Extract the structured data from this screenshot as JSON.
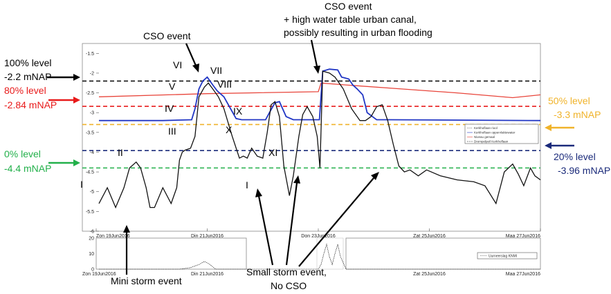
{
  "chart_data": {
    "type": "line",
    "ylim": [
      -6,
      -1.25
    ],
    "yaxis_inverted": true,
    "yticks": [
      "-1.5",
      "-2",
      "-2.5",
      "-3",
      "-3.5",
      "-4",
      "-4.5",
      "-5",
      "-5.5",
      "-6"
    ],
    "ytick_values": [
      -1.5,
      -2,
      -2.5,
      -3,
      -3.5,
      -4,
      -4.5,
      -5,
      -5.5,
      -6
    ],
    "xlim": [
      0,
      8
    ],
    "xticks": [
      "Zon 19Jun2016",
      "Din 21Jun2016",
      "Don 23Jun2016",
      "Zat 25Jun2016",
      "Maa 27Jun2016"
    ],
    "xtick_values": [
      0,
      2,
      4,
      6,
      8
    ],
    "legend": {
      "placement": "right",
      "entries": [
        "Kerkhoflaan riool",
        "Kerkhoflaan oppervlaktewater",
        "Niveau gemaal",
        "Drempelpeil Kerkhoflaan"
      ]
    },
    "series": [
      {
        "name": "Niveau gemaal",
        "color": "#e8443a",
        "x": [
          0.05,
          2.0,
          4.0,
          4.05,
          4.5,
          5.5,
          6.5,
          7.5,
          8.0
        ],
        "y": [
          -2.6,
          -2.52,
          -2.47,
          -2.25,
          -2.3,
          -2.4,
          -2.5,
          -2.62,
          -2.55
        ]
      },
      {
        "name": "Kerkhoflaan oppervlaktewater",
        "color": "#2035c4",
        "x": [
          0.05,
          1.2,
          1.72,
          1.78,
          1.85,
          1.92,
          2.0,
          2.1,
          2.18,
          2.3,
          2.42,
          2.52,
          2.62,
          2.75,
          2.9,
          3.05,
          3.12,
          3.22,
          3.3,
          3.42,
          3.55,
          3.7,
          3.85,
          3.95,
          4.02,
          4.08,
          4.2,
          4.35,
          4.42,
          4.47,
          4.55,
          4.62,
          4.7,
          4.8,
          4.88,
          5.05,
          5.12,
          5.2,
          5.3,
          8.0
        ],
        "y": [
          -3.2,
          -3.2,
          -3.18,
          -2.9,
          -2.4,
          -2.2,
          -2.1,
          -2.3,
          -2.45,
          -2.6,
          -2.9,
          -3.15,
          -3.18,
          -3.18,
          -3.18,
          -3.18,
          -3.0,
          -2.75,
          -2.72,
          -3.1,
          -3.18,
          -3.18,
          -3.18,
          -3.18,
          -3.18,
          -1.95,
          -1.9,
          -1.92,
          -2.1,
          -2.12,
          -2.15,
          -2.3,
          -2.4,
          -2.55,
          -3.0,
          -3.18,
          -3.18,
          -3.18,
          -3.18,
          -3.2
        ]
      },
      {
        "name": "Kerkhoflaan riool",
        "color": "#111111",
        "x": [
          0.05,
          0.2,
          0.35,
          0.5,
          0.6,
          0.72,
          0.8,
          0.9,
          0.97,
          1.05,
          1.2,
          1.35,
          1.45,
          1.5,
          1.55,
          1.6,
          1.7,
          1.78,
          1.85,
          1.95,
          2.02,
          2.1,
          2.2,
          2.3,
          2.45,
          2.58,
          2.65,
          2.72,
          2.8,
          2.9,
          3.0,
          3.08,
          3.15,
          3.22,
          3.3,
          3.38,
          3.48,
          3.55,
          3.65,
          3.72,
          3.8,
          3.9,
          3.98,
          4.03,
          4.08,
          4.2,
          4.3,
          4.45,
          4.6,
          4.75,
          4.85,
          4.95,
          5.05,
          5.15,
          5.25,
          5.35,
          5.45,
          5.55,
          5.65,
          5.8,
          5.95,
          6.2,
          6.5,
          6.8,
          7.0,
          7.2,
          7.35,
          7.5,
          7.6,
          7.7,
          7.82,
          7.9,
          8.0
        ],
        "y": [
          -5.3,
          -4.9,
          -5.4,
          -4.9,
          -4.4,
          -4.25,
          -4.4,
          -4.9,
          -5.4,
          -5.4,
          -4.9,
          -5.3,
          -4.9,
          -4.2,
          -4.0,
          -3.95,
          -3.9,
          -3.6,
          -2.6,
          -2.35,
          -2.25,
          -2.4,
          -2.6,
          -2.9,
          -3.6,
          -4.15,
          -4.1,
          -4.15,
          -3.9,
          -4.1,
          -4.15,
          -3.5,
          -2.8,
          -2.72,
          -3.1,
          -4.35,
          -5.1,
          -4.6,
          -3.6,
          -3.05,
          -2.85,
          -3.1,
          -3.6,
          -4.4,
          -1.95,
          -2.0,
          -2.1,
          -2.4,
          -2.9,
          -3.2,
          -3.2,
          -3.1,
          -2.85,
          -2.8,
          -3.2,
          -3.8,
          -4.35,
          -4.5,
          -4.45,
          -4.6,
          -4.45,
          -4.6,
          -4.7,
          -4.75,
          -4.85,
          -5.3,
          -4.5,
          -4.3,
          -4.55,
          -4.85,
          -4.4,
          -4.6,
          -4.7
        ]
      }
    ],
    "reference_lines": [
      {
        "y": -2.2,
        "color": "#111111"
      },
      {
        "y": -2.84,
        "color": "#e81a1a"
      },
      {
        "y": -3.3,
        "color": "#f0b32a"
      },
      {
        "y": -3.96,
        "color": "#1a2a7a"
      },
      {
        "y": -4.4,
        "color": "#22b04a"
      }
    ],
    "rainfall": {
      "ylim": [
        0,
        20
      ],
      "yticks": [
        "20",
        "10",
        "0"
      ],
      "ytick_values": [
        20,
        10,
        0
      ],
      "xticks": [
        "Zon 19Jun2016",
        "Din 21Jun2016",
        "Don 23Jun2016",
        "Zat 25Jun2016",
        "Maa 27Jun2016"
      ],
      "xtick_values": [
        0,
        2,
        4,
        6,
        8
      ],
      "legend": {
        "placement": "right",
        "entries": [
          "Uurneerslag KNMI"
        ]
      },
      "x": [
        0.05,
        1.5,
        1.7,
        1.85,
        1.95,
        2.05,
        2.15,
        4.0,
        4.05,
        4.1,
        4.15,
        4.2,
        4.25,
        4.3,
        4.35,
        4.4,
        4.5,
        8.0
      ],
      "y": [
        0,
        0,
        1,
        3,
        5,
        3,
        0,
        0,
        3,
        10,
        16,
        8,
        3,
        10,
        16,
        8,
        0,
        0
      ]
    },
    "annotations": {
      "left_100_label": "100% level",
      "left_100_value": "-2.2 mNAP",
      "left_80_label": "80% level",
      "left_80_value": "-2.84 mNAP",
      "left_0_label": "0% level",
      "left_0_value": "-4.4 mNAP",
      "right_50_label": "50% level",
      "right_50_value": "-3.3 mNAP",
      "right_20_label": "20% level",
      "right_20_value": "-3.96 mNAP",
      "cso_event": "CSO event",
      "cso_event2_line1": "CSO event",
      "cso_event2_line2": "+ high water table urban canal,",
      "cso_event2_line3": "possibly resulting in urban flooding",
      "mini_storm": "Mini storm event",
      "small_storm_line1": "Small storm event,",
      "small_storm_line2": "No CSO",
      "roman": [
        "I",
        "II",
        "III",
        "IV",
        "V",
        "VI",
        "VII",
        "VIII",
        "IX",
        "X",
        "XI",
        "I"
      ]
    }
  }
}
